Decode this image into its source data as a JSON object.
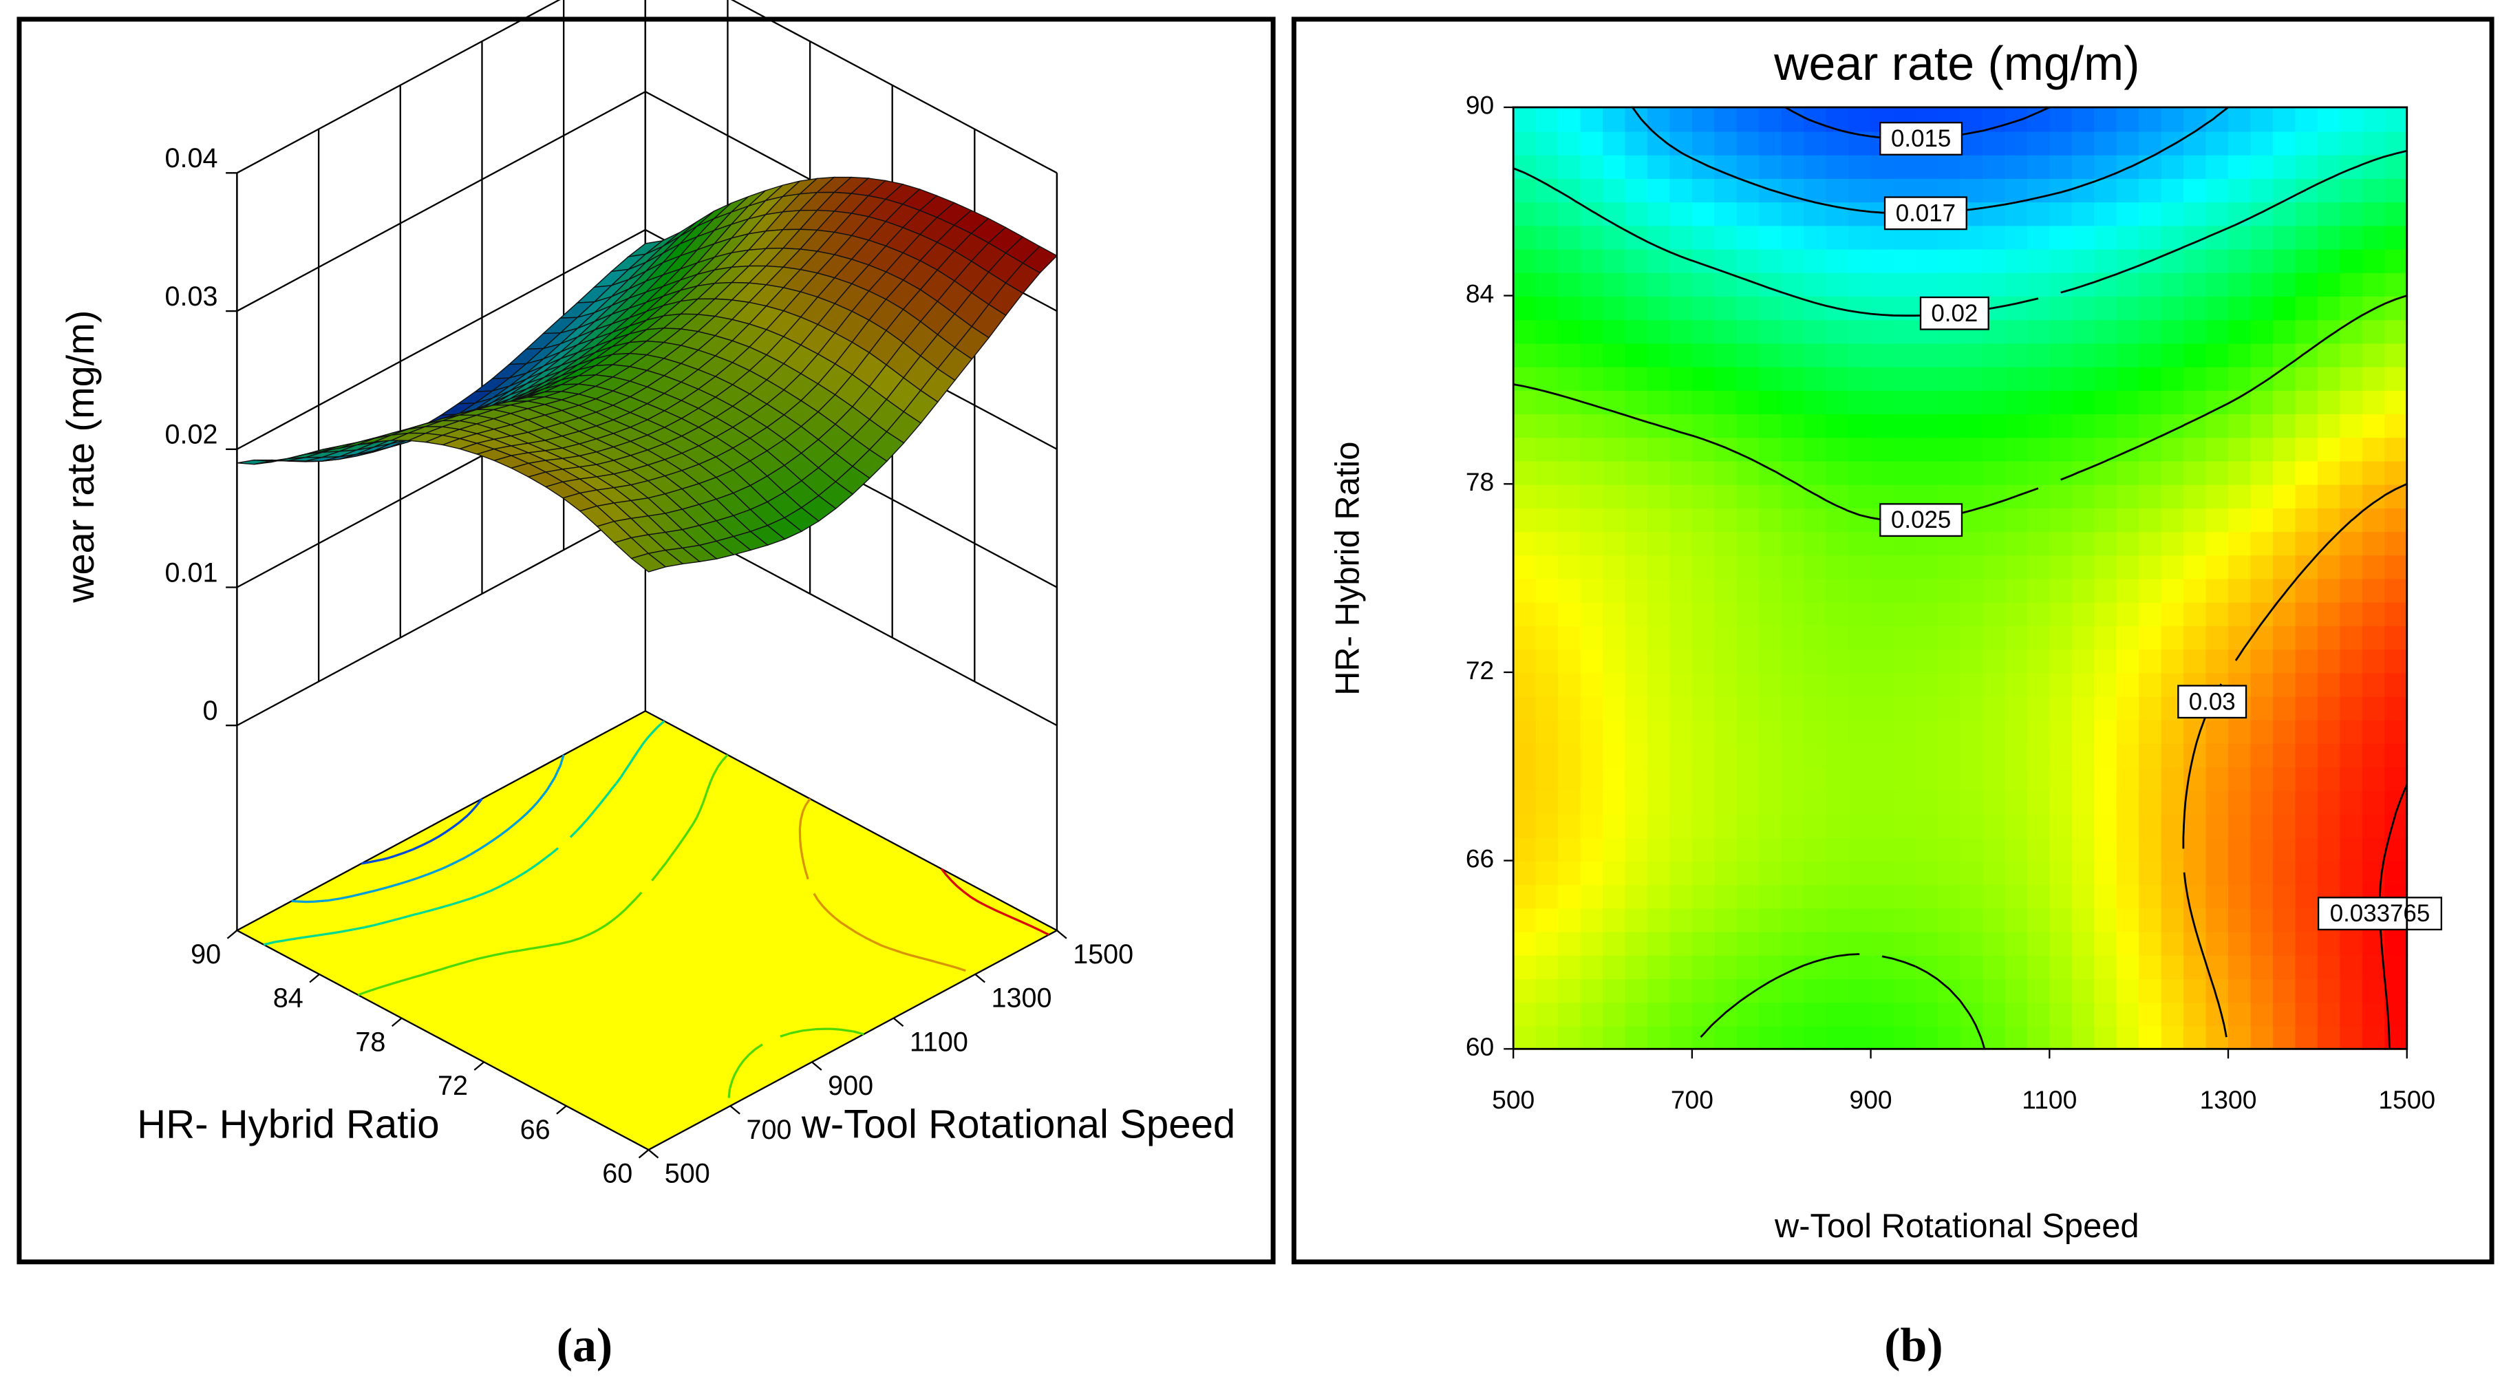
{
  "chart_data": [
    {
      "type": "surface",
      "zlabel": "wear rate (mg/m)",
      "xlabel": "w-Tool Rotational Speed",
      "ylabel": "HR- Hybrid Ratio",
      "panel": "(a)",
      "x": [
        500,
        700,
        900,
        1100,
        1300,
        1500
      ],
      "y": [
        60,
        66,
        72,
        78,
        84,
        90
      ],
      "z": [
        [
          0.027,
          0.025,
          0.024,
          0.026,
          0.03,
          0.034
        ],
        [
          0.029,
          0.027,
          0.026,
          0.027,
          0.031,
          0.034
        ],
        [
          0.029,
          0.027,
          0.026,
          0.027,
          0.03,
          0.033
        ],
        [
          0.027,
          0.026,
          0.0245,
          0.025,
          0.027,
          0.03
        ],
        [
          0.023,
          0.021,
          0.0195,
          0.02,
          0.022,
          0.025
        ],
        [
          0.019,
          0.016,
          0.0145,
          0.015,
          0.017,
          0.019
        ]
      ],
      "xlim": [
        500,
        1500
      ],
      "ylim": [
        60,
        90
      ],
      "zlim": [
        0,
        0.04
      ],
      "xticks": [
        500,
        700,
        900,
        1100,
        1300,
        1500
      ],
      "yticks": [
        60,
        66,
        72,
        78,
        84,
        90
      ],
      "zticks": [
        0,
        0.01,
        0.02,
        0.03,
        0.04
      ],
      "levels": [
        0.015,
        0.017,
        0.02,
        0.025,
        0.03,
        0.033765
      ],
      "floor_color": "#ffff00"
    },
    {
      "type": "contour",
      "title": "wear rate (mg/m)",
      "xlabel": "w-Tool Rotational Speed",
      "ylabel": "HR- Hybrid Ratio",
      "panel": "(b)",
      "x": [
        500,
        700,
        900,
        1100,
        1300,
        1500
      ],
      "y": [
        60,
        66,
        72,
        78,
        84,
        90
      ],
      "z": [
        [
          0.027,
          0.025,
          0.024,
          0.026,
          0.03,
          0.034
        ],
        [
          0.029,
          0.027,
          0.026,
          0.027,
          0.031,
          0.034
        ],
        [
          0.029,
          0.027,
          0.026,
          0.027,
          0.03,
          0.033
        ],
        [
          0.027,
          0.026,
          0.0245,
          0.025,
          0.027,
          0.03
        ],
        [
          0.023,
          0.021,
          0.0195,
          0.02,
          0.022,
          0.025
        ],
        [
          0.019,
          0.016,
          0.0145,
          0.015,
          0.017,
          0.019
        ]
      ],
      "xlim": [
        500,
        1500
      ],
      "ylim": [
        60,
        90
      ],
      "xticks": [
        500,
        700,
        900,
        1100,
        1300,
        1500
      ],
      "yticks": [
        60,
        66,
        72,
        78,
        84,
        90
      ],
      "levels": [
        0.015,
        0.017,
        0.02,
        0.025,
        0.03,
        0.033765
      ]
    }
  ]
}
